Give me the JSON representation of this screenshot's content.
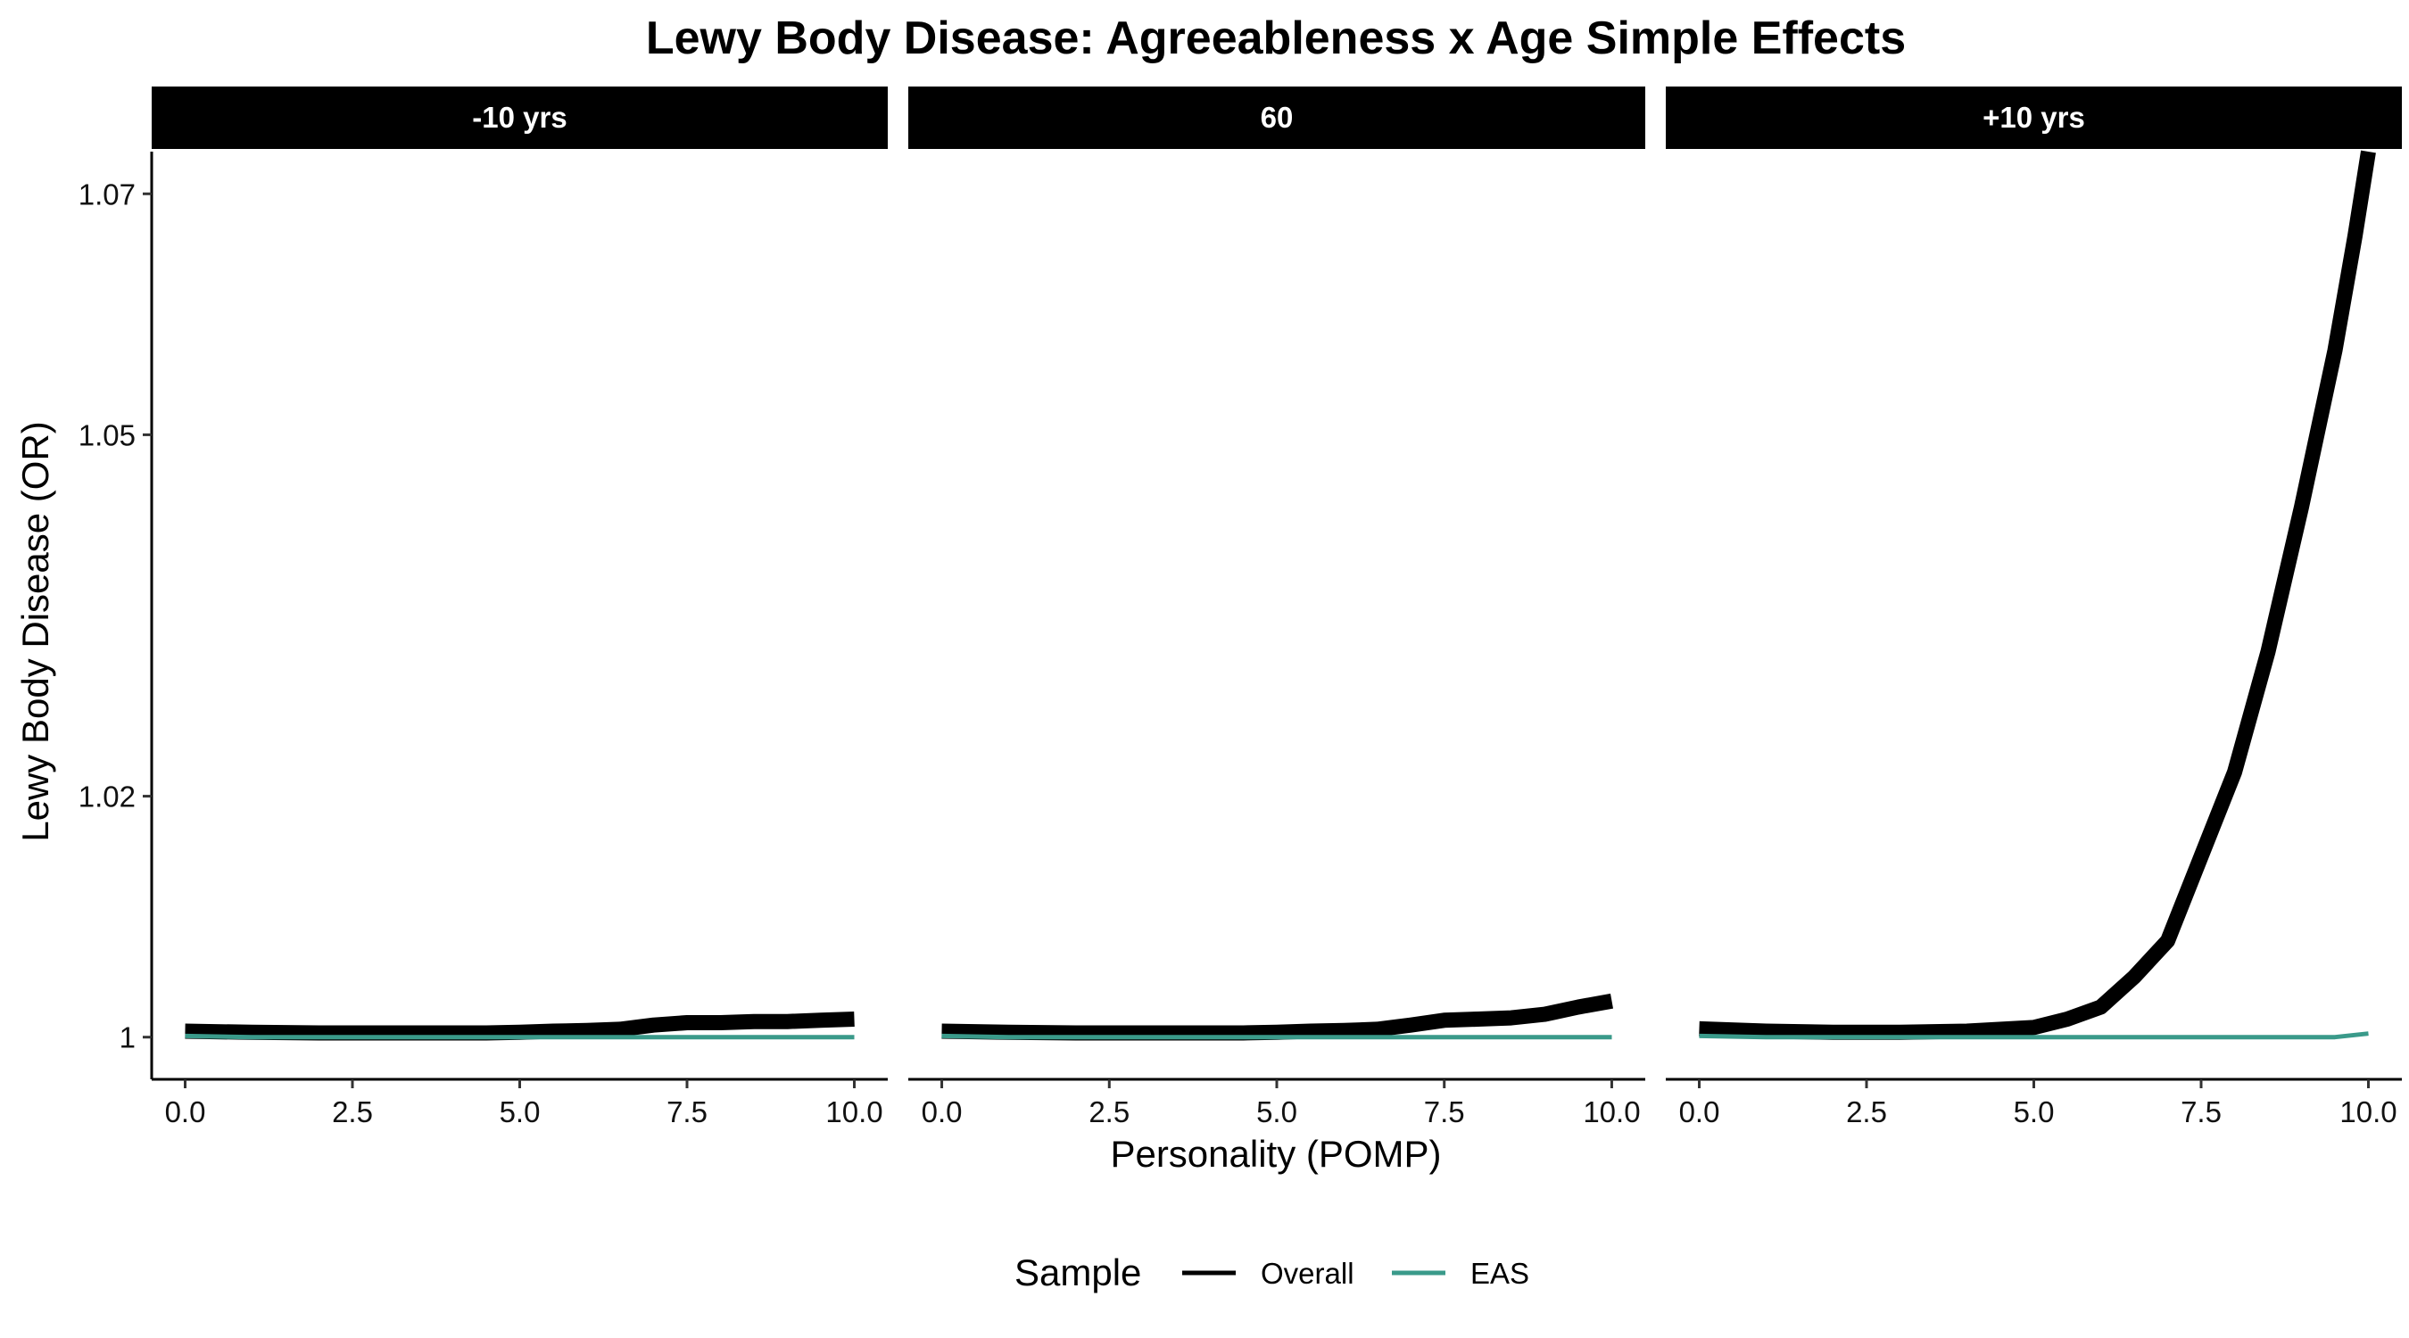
{
  "chart_data": {
    "type": "line",
    "title": "Lewy Body Disease: Agreeableness x Age Simple Effects",
    "xlabel": "Personality (POMP)",
    "ylabel": "Lewy Body Disease (OR)",
    "xlim": [
      -0.5,
      10.5
    ],
    "ylim": [
      0.9965,
      1.0735
    ],
    "x_ticks": [
      0,
      2.5,
      5,
      7.5,
      10
    ],
    "x_tick_labels": [
      "0.0",
      "2.5",
      "5.0",
      "7.5",
      "10.0"
    ],
    "y_ticks": [
      1,
      1.02,
      1.05,
      1.07
    ],
    "y_tick_labels": [
      "1",
      "1.02",
      "1.05",
      "1.07"
    ],
    "legend": {
      "title": "Sample",
      "position": "bottom",
      "entries": [
        {
          "label": "Overall",
          "color": "#000000"
        },
        {
          "label": "EAS",
          "color": "#3a9a8a"
        }
      ]
    },
    "panels": [
      {
        "label": "-10 yrs",
        "series": [
          {
            "name": "Overall",
            "color": "#000000",
            "x": [
              0,
              1,
              2,
              3,
              4,
              4.5,
              5,
              5.5,
              6,
              6.5,
              7,
              7.5,
              8,
              8.5,
              9,
              9.5,
              10
            ],
            "y": [
              1.0005,
              1.0004,
              1.00035,
              1.00035,
              1.00035,
              1.00035,
              1.0004,
              1.0005,
              1.00055,
              1.00065,
              1.001,
              1.0012,
              1.0012,
              1.0013,
              1.0013,
              1.0014,
              1.0015
            ]
          },
          {
            "name": "EAS",
            "color": "#3a9a8a",
            "x": [
              0,
              1,
              2,
              3,
              4,
              5,
              6,
              7,
              8,
              9,
              10
            ],
            "y": [
              1.0001,
              1.0,
              1.0,
              1.0,
              1.0,
              1.0,
              1.0,
              1.0,
              1.0,
              1.0,
              1.0
            ]
          }
        ]
      },
      {
        "label": "60",
        "series": [
          {
            "name": "Overall",
            "color": "#000000",
            "x": [
              0,
              1,
              2,
              3,
              4,
              4.5,
              5,
              5.5,
              6,
              6.5,
              7,
              7.5,
              8,
              8.5,
              9,
              9.5,
              10
            ],
            "y": [
              1.0005,
              1.0004,
              1.00035,
              1.00035,
              1.00035,
              1.00035,
              1.0004,
              1.0005,
              1.00055,
              1.00065,
              1.001,
              1.0014,
              1.0015,
              1.0016,
              1.0019,
              1.0025,
              1.003
            ]
          },
          {
            "name": "EAS",
            "color": "#3a9a8a",
            "x": [
              0,
              1,
              2,
              3,
              4,
              5,
              6,
              7,
              8,
              9,
              10
            ],
            "y": [
              1.0001,
              1.0,
              1.0,
              1.0,
              1.0,
              1.0,
              1.0,
              1.0,
              1.0,
              1.0,
              1.0
            ]
          }
        ]
      },
      {
        "label": "+10 yrs",
        "series": [
          {
            "name": "Overall",
            "color": "#000000",
            "x": [
              0,
              1,
              2,
              3,
              4,
              5,
              5.5,
              6,
              6.5,
              7,
              7.5,
              8,
              8.5,
              9,
              9.5,
              9.8,
              10
            ],
            "y": [
              1.0007,
              1.0005,
              1.0004,
              1.0004,
              1.0005,
              1.0008,
              1.0015,
              1.0025,
              1.005,
              1.008,
              1.015,
              1.022,
              1.032,
              1.044,
              1.057,
              1.0665,
              1.0735
            ]
          },
          {
            "name": "EAS",
            "color": "#3a9a8a",
            "x": [
              0,
              1,
              2,
              3,
              4,
              5,
              6,
              7,
              8,
              9,
              9.5,
              10
            ],
            "y": [
              1.0001,
              1.0,
              1.0,
              1.0,
              1.0,
              1.0,
              1.0,
              1.0,
              1.0,
              1.0,
              1.0,
              1.0003
            ]
          }
        ]
      }
    ]
  }
}
